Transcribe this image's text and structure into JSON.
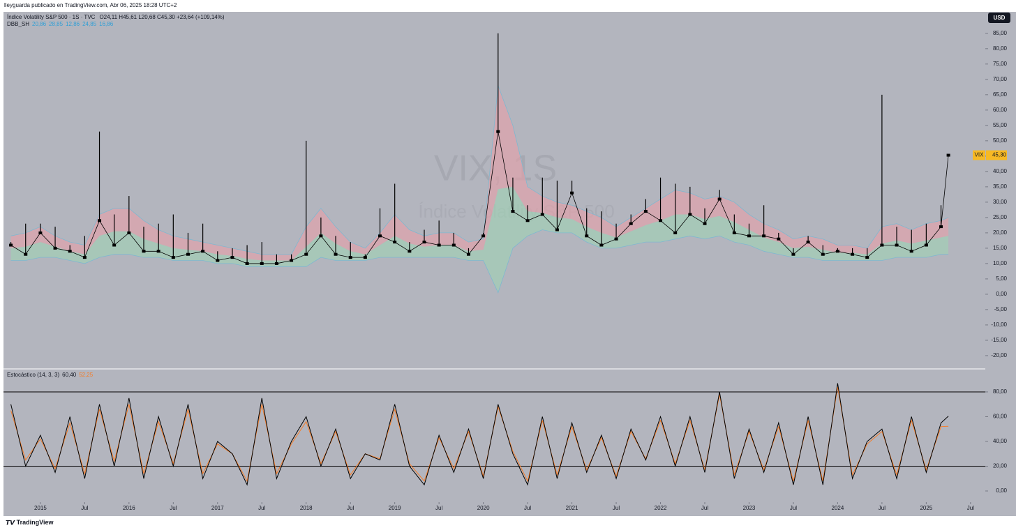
{
  "header": {
    "publisher": "lleyguarda publicado en TradingView.com, Abr 06, 2025 18:28 UTC+2",
    "currency": "USD",
    "brand": "TradingView"
  },
  "chart_data": [
    {
      "type": "candlestick",
      "title": "Índice Volatility S&P 500 · 1S · TVC",
      "ohlc_text": "O24,11  H45,61  L20,68  C45,30  +23,64 (+109,14%)",
      "watermark": [
        "VIX, 1S",
        "Índice Volatility S&P 500"
      ],
      "x": [
        "2014-09",
        "2014-11",
        "2015-01",
        "2015-03",
        "2015-05",
        "2015-07",
        "2015-09",
        "2015-11",
        "2016-01",
        "2016-03",
        "2016-05",
        "2016-07",
        "2016-09",
        "2016-11",
        "2017-01",
        "2017-03",
        "2017-05",
        "2017-07",
        "2017-09",
        "2017-11",
        "2018-01",
        "2018-03",
        "2018-05",
        "2018-07",
        "2018-09",
        "2018-11",
        "2019-01",
        "2019-03",
        "2019-05",
        "2019-07",
        "2019-09",
        "2019-11",
        "2020-01",
        "2020-03",
        "2020-05",
        "2020-07",
        "2020-09",
        "2020-11",
        "2021-01",
        "2021-03",
        "2021-05",
        "2021-07",
        "2021-09",
        "2021-11",
        "2022-01",
        "2022-03",
        "2022-05",
        "2022-07",
        "2022-09",
        "2022-11",
        "2023-01",
        "2023-03",
        "2023-05",
        "2023-07",
        "2023-09",
        "2023-11",
        "2024-01",
        "2024-03",
        "2024-05",
        "2024-07",
        "2024-09",
        "2024-11",
        "2025-01",
        "2025-03",
        "2025-04"
      ],
      "high": [
        17,
        23,
        23,
        22,
        16,
        19,
        53,
        26,
        32,
        22,
        23,
        26,
        20,
        23,
        14,
        15,
        16,
        17,
        13,
        13,
        50,
        25,
        19,
        17,
        13,
        28,
        36,
        17,
        21,
        24,
        20,
        15,
        20,
        85,
        38,
        29,
        38,
        37,
        37,
        28,
        27,
        23,
        26,
        31,
        38,
        36,
        35,
        28,
        34,
        26,
        23,
        29,
        20,
        15,
        19,
        16,
        15,
        15,
        15,
        65,
        22,
        21,
        23,
        29,
        45.61
      ],
      "close": [
        16,
        13,
        20,
        15,
        14,
        12,
        24,
        16,
        20,
        14,
        14,
        12,
        13,
        14,
        11,
        12,
        10,
        10,
        10,
        11,
        13,
        19,
        13,
        12,
        12,
        19,
        17,
        14,
        17,
        16,
        16,
        13,
        19,
        53,
        27,
        24,
        26,
        21,
        33,
        19,
        16,
        18,
        23,
        27,
        24,
        20,
        26,
        23,
        31,
        20,
        19,
        19,
        18,
        13,
        17,
        13,
        14,
        13,
        12,
        16,
        16,
        14,
        16,
        22,
        45.3
      ],
      "bands": {
        "name": "DBB_SH",
        "legend_values": [
          "20,86",
          "28,85",
          "12,86",
          "24,85",
          "16,86"
        ],
        "upper_color": "#e8a0a8",
        "lower_color": "#9fd3b4",
        "upper": [
          19,
          20,
          22,
          19,
          17,
          16,
          26,
          28,
          28,
          24,
          21,
          19,
          18,
          17,
          16,
          15,
          14,
          13,
          13,
          13,
          22,
          28,
          22,
          17,
          15,
          20,
          26,
          21,
          19,
          20,
          20,
          17,
          18,
          68,
          55,
          35,
          32,
          30,
          29,
          27,
          25,
          22,
          25,
          28,
          31,
          34,
          33,
          31,
          32,
          30,
          26,
          23,
          21,
          18,
          19,
          18,
          16,
          16,
          15,
          22,
          23,
          21,
          23,
          24,
          25
        ],
        "lower": [
          11,
          11,
          12,
          12,
          11,
          10,
          12,
          13,
          13,
          12,
          12,
          11,
          11,
          11,
          10,
          10,
          9,
          9,
          9,
          9,
          9,
          12,
          11,
          11,
          11,
          12,
          12,
          12,
          12,
          12,
          12,
          11,
          11,
          0.5,
          15,
          19,
          21,
          20,
          20,
          17,
          15,
          15,
          16,
          17,
          17,
          18,
          19,
          18,
          19,
          17,
          16,
          14,
          13,
          12,
          12,
          11,
          11,
          11,
          11,
          11,
          12,
          12,
          12,
          13,
          13
        ]
      },
      "last_label": {
        "name": "VIX",
        "value": 45.3,
        "label": "45,30"
      },
      "ylim": [
        -24.1,
        92
      ],
      "yticks": [
        {
          "value": -20,
          "label": "-20,00"
        },
        {
          "value": -15,
          "label": "-15,00"
        },
        {
          "value": -10,
          "label": "-10,00"
        },
        {
          "value": -5,
          "label": "-5,00"
        },
        {
          "value": 0,
          "label": "0,00"
        },
        {
          "value": 5,
          "label": "5,00"
        },
        {
          "value": 10,
          "label": "10,00"
        },
        {
          "value": 15,
          "label": "15,00"
        },
        {
          "value": 20,
          "label": "20,00"
        },
        {
          "value": 25,
          "label": "25,00"
        },
        {
          "value": 30,
          "label": "30,00"
        },
        {
          "value": 35,
          "label": "35,00"
        },
        {
          "value": 40,
          "label": "40,00"
        },
        {
          "value": 45,
          "label": "45,00"
        },
        {
          "value": 50,
          "label": "50,00"
        },
        {
          "value": 55,
          "label": "55,00"
        },
        {
          "value": 60,
          "label": "60,00"
        },
        {
          "value": 65,
          "label": "65,00"
        },
        {
          "value": 70,
          "label": "70,00"
        },
        {
          "value": 75,
          "label": "75,00"
        },
        {
          "value": 80,
          "label": "80,00"
        },
        {
          "value": 85,
          "label": "85,00"
        }
      ],
      "xlim": [
        "2014-08",
        "2025-09"
      ],
      "xticks": [
        {
          "value": "2015-01",
          "label": "2015"
        },
        {
          "value": "2015-07",
          "label": "Jul"
        },
        {
          "value": "2016-01",
          "label": "2016"
        },
        {
          "value": "2016-07",
          "label": "Jul"
        },
        {
          "value": "2017-01",
          "label": "2017"
        },
        {
          "value": "2017-07",
          "label": "Jul"
        },
        {
          "value": "2018-01",
          "label": "2018"
        },
        {
          "value": "2018-07",
          "label": "Jul"
        },
        {
          "value": "2019-01",
          "label": "2019"
        },
        {
          "value": "2019-07",
          "label": "Jul"
        },
        {
          "value": "2020-01",
          "label": "2020"
        },
        {
          "value": "2020-07",
          "label": "Jul"
        },
        {
          "value": "2021-01",
          "label": "2021"
        },
        {
          "value": "2021-07",
          "label": "Jul"
        },
        {
          "value": "2022-01",
          "label": "2022"
        },
        {
          "value": "2022-07",
          "label": "Jul"
        },
        {
          "value": "2023-01",
          "label": "2023"
        },
        {
          "value": "2023-07",
          "label": "Jul"
        },
        {
          "value": "2024-01",
          "label": "2024"
        },
        {
          "value": "2024-07",
          "label": "Jul"
        },
        {
          "value": "2025-01",
          "label": "2025"
        },
        {
          "value": "2025-07",
          "label": "Jul"
        }
      ],
      "color": "#000000"
    },
    {
      "type": "line",
      "title": "Estocástico (14, 3, 3)",
      "series": [
        {
          "color": "#000000",
          "legend_value": "60,40",
          "values": [
            70,
            20,
            45,
            15,
            60,
            10,
            70,
            20,
            75,
            10,
            60,
            20,
            70,
            10,
            40,
            30,
            5,
            75,
            10,
            40,
            60,
            20,
            50,
            10,
            30,
            25,
            70,
            20,
            5,
            45,
            15,
            50,
            10,
            70,
            30,
            5,
            60,
            10,
            55,
            15,
            45,
            10,
            50,
            25,
            60,
            20,
            60,
            15,
            80,
            10,
            50,
            15,
            55,
            5,
            60,
            5,
            87,
            10,
            40,
            50,
            10,
            60,
            15,
            55,
            60.4
          ]
        },
        {
          "color": "#f57c28",
          "legend_value": "52,25",
          "values": [
            65,
            25,
            42,
            18,
            55,
            14,
            66,
            24,
            70,
            14,
            56,
            22,
            66,
            14,
            38,
            30,
            8,
            70,
            14,
            38,
            56,
            22,
            48,
            13,
            30,
            26,
            66,
            22,
            8,
            43,
            18,
            48,
            12,
            68,
            32,
            8,
            57,
            13,
            52,
            17,
            43,
            12,
            48,
            26,
            57,
            22,
            57,
            17,
            78,
            13,
            48,
            17,
            52,
            8,
            57,
            8,
            84,
            13,
            38,
            48,
            13,
            57,
            17,
            52,
            52.25
          ]
        }
      ],
      "levels": [
        20,
        80
      ],
      "ylim": [
        -9,
        98
      ],
      "yticks": [
        {
          "value": 0,
          "label": "0,00"
        },
        {
          "value": 20,
          "label": "20,00"
        },
        {
          "value": 40,
          "label": "40,00"
        },
        {
          "value": 60,
          "label": "60,00"
        },
        {
          "value": 80,
          "label": "80,00"
        }
      ]
    }
  ]
}
